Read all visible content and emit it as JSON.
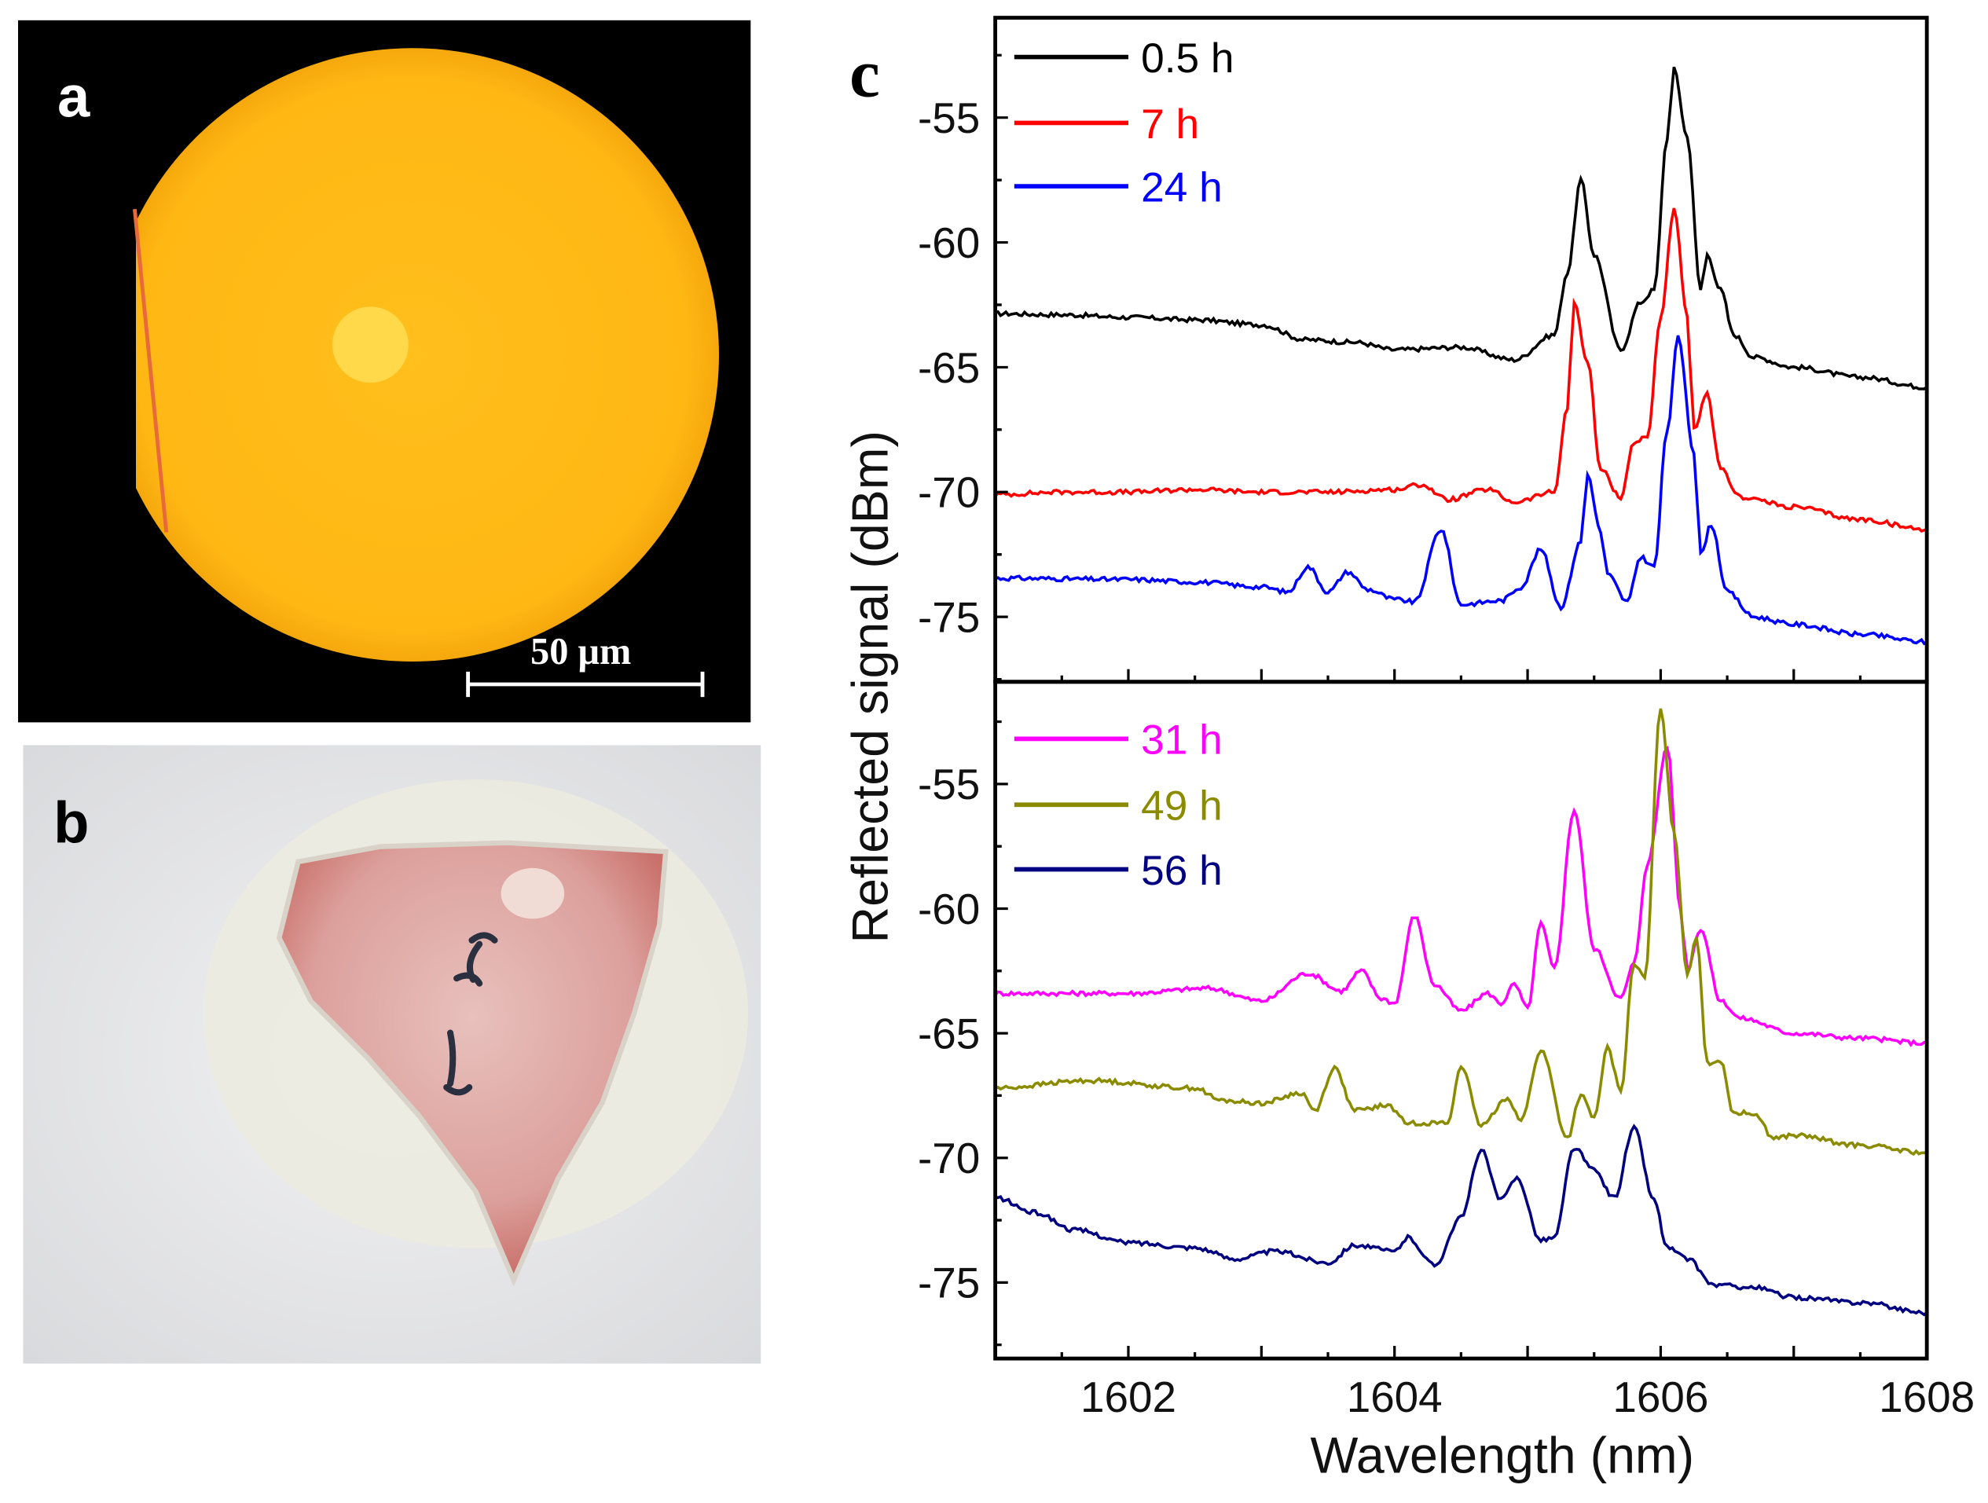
{
  "panels": {
    "a": {
      "label": "a",
      "scale_bar": "50 μm"
    },
    "b": {
      "label": "b"
    },
    "c": {
      "label": "c"
    }
  },
  "chart_data": {
    "type": "line",
    "title": "",
    "xlabel": "Wavelength (nm)",
    "ylabel": "Reflected signal (dBm)",
    "xlim": [
      1601,
      1608
    ],
    "xticks": [
      1602,
      1604,
      1606,
      1608
    ],
    "grid": false,
    "legend_placement": "top-left",
    "subplots": [
      {
        "ylim": [
          -77.6,
          -51
        ],
        "yticks": [
          -55,
          -60,
          -65,
          -70,
          -75
        ],
        "series": [
          {
            "name": "0.5 h",
            "color": "#000000",
            "points": [
              [
                1601,
                -62.85
              ],
              [
                1601.5,
                -62.9
              ],
              [
                1602,
                -63.0
              ],
              [
                1602.5,
                -63.1
              ],
              [
                1603,
                -63.3
              ],
              [
                1603.33,
                -63.9
              ],
              [
                1603.7,
                -64.0
              ],
              [
                1604,
                -64.3
              ],
              [
                1604.5,
                -64.2
              ],
              [
                1604.9,
                -64.7
              ],
              [
                1605.2,
                -63.7
              ],
              [
                1605.3,
                -61.2
              ],
              [
                1605.4,
                -57.5
              ],
              [
                1605.5,
                -60.5
              ],
              [
                1605.7,
                -64.3
              ],
              [
                1605.85,
                -62.4
              ],
              [
                1605.95,
                -61.9
              ],
              [
                1606.05,
                -55.8
              ],
              [
                1606.1,
                -53.05
              ],
              [
                1606.2,
                -55.8
              ],
              [
                1606.3,
                -61.9
              ],
              [
                1606.35,
                -60.5
              ],
              [
                1606.45,
                -61.9
              ],
              [
                1606.55,
                -63.7
              ],
              [
                1606.7,
                -64.6
              ],
              [
                1607,
                -65.0
              ],
              [
                1607.5,
                -65.4
              ],
              [
                1608,
                -65.8
              ]
            ]
          },
          {
            "name": "7 h",
            "color": "#ff0000",
            "points": [
              [
                1601,
                -70.1
              ],
              [
                1601.5,
                -70.0
              ],
              [
                1602,
                -70.0
              ],
              [
                1602.5,
                -69.9
              ],
              [
                1603,
                -70.0
              ],
              [
                1603.5,
                -70.0
              ],
              [
                1604,
                -69.9
              ],
              [
                1604.2,
                -69.7
              ],
              [
                1604.4,
                -70.3
              ],
              [
                1604.7,
                -69.9
              ],
              [
                1604.9,
                -70.4
              ],
              [
                1605.2,
                -70.0
              ],
              [
                1605.3,
                -66.6
              ],
              [
                1605.35,
                -62.4
              ],
              [
                1605.45,
                -64.8
              ],
              [
                1605.55,
                -69.1
              ],
              [
                1605.7,
                -70.2
              ],
              [
                1605.8,
                -68.0
              ],
              [
                1605.9,
                -67.8
              ],
              [
                1606.0,
                -63.0
              ],
              [
                1606.1,
                -58.7
              ],
              [
                1606.2,
                -63.0
              ],
              [
                1606.25,
                -67.5
              ],
              [
                1606.35,
                -66.1
              ],
              [
                1606.45,
                -69.1
              ],
              [
                1606.6,
                -70.2
              ],
              [
                1607,
                -70.6
              ],
              [
                1607.5,
                -71.1
              ],
              [
                1608,
                -71.5
              ]
            ]
          },
          {
            "name": "24 h",
            "color": "#0000ff",
            "points": [
              [
                1601,
                -73.45
              ],
              [
                1602,
                -73.5
              ],
              [
                1602.5,
                -73.6
              ],
              [
                1603,
                -73.8
              ],
              [
                1603.2,
                -74.0
              ],
              [
                1603.35,
                -73.0
              ],
              [
                1603.5,
                -74.0
              ],
              [
                1603.65,
                -73.2
              ],
              [
                1603.8,
                -73.9
              ],
              [
                1604,
                -74.3
              ],
              [
                1604.15,
                -74.4
              ],
              [
                1604.35,
                -71.5
              ],
              [
                1604.5,
                -74.5
              ],
              [
                1604.8,
                -74.35
              ],
              [
                1604.95,
                -73.8
              ],
              [
                1605.1,
                -72.3
              ],
              [
                1605.25,
                -74.6
              ],
              [
                1605.4,
                -72.0
              ],
              [
                1605.45,
                -69.3
              ],
              [
                1605.55,
                -71.6
              ],
              [
                1605.6,
                -73.3
              ],
              [
                1605.75,
                -74.4
              ],
              [
                1605.85,
                -72.6
              ],
              [
                1605.95,
                -73.0
              ],
              [
                1606.05,
                -67.5
              ],
              [
                1606.13,
                -63.8
              ],
              [
                1606.25,
                -68.4
              ],
              [
                1606.3,
                -72.5
              ],
              [
                1606.38,
                -71.3
              ],
              [
                1606.5,
                -74.0
              ],
              [
                1606.7,
                -75.0
              ],
              [
                1607,
                -75.3
              ],
              [
                1607.5,
                -75.7
              ],
              [
                1608,
                -76.0
              ]
            ]
          }
        ]
      },
      {
        "ylim": [
          -78.05,
          -50.9
        ],
        "yticks": [
          -55,
          -60,
          -65,
          -70,
          -75
        ],
        "series": [
          {
            "name": "31 h",
            "color": "#ff00ff",
            "points": [
              [
                1601,
                -63.4
              ],
              [
                1602,
                -63.4
              ],
              [
                1602.6,
                -63.2
              ],
              [
                1603,
                -63.7
              ],
              [
                1603.35,
                -62.6
              ],
              [
                1603.6,
                -63.3
              ],
              [
                1603.75,
                -62.5
              ],
              [
                1603.9,
                -63.6
              ],
              [
                1604,
                -63.8
              ],
              [
                1604.15,
                -60.3
              ],
              [
                1604.3,
                -63.05
              ],
              [
                1604.5,
                -64.1
              ],
              [
                1604.7,
                -63.4
              ],
              [
                1604.8,
                -63.8
              ],
              [
                1604.9,
                -63.05
              ],
              [
                1605,
                -64.0
              ],
              [
                1605.1,
                -60.6
              ],
              [
                1605.2,
                -62.4
              ],
              [
                1605.35,
                -56.05
              ],
              [
                1605.5,
                -61.6
              ],
              [
                1605.7,
                -63.6
              ],
              [
                1605.8,
                -62.2
              ],
              [
                1605.9,
                -58.2
              ],
              [
                1606.05,
                -53.5
              ],
              [
                1606.15,
                -60.1
              ],
              [
                1606.2,
                -62.4
              ],
              [
                1606.3,
                -60.8
              ],
              [
                1606.45,
                -63.7
              ],
              [
                1606.6,
                -64.4
              ],
              [
                1607,
                -65.0
              ],
              [
                1607.5,
                -65.2
              ],
              [
                1608,
                -65.4
              ]
            ]
          },
          {
            "name": "49 h",
            "color": "#8b8b00",
            "points": [
              [
                1601,
                -67.2
              ],
              [
                1601.7,
                -66.9
              ],
              [
                1602.5,
                -67.2
              ],
              [
                1602.7,
                -67.7
              ],
              [
                1603,
                -67.8
              ],
              [
                1603.3,
                -67.4
              ],
              [
                1603.4,
                -68.1
              ],
              [
                1603.55,
                -66.4
              ],
              [
                1603.7,
                -68.1
              ],
              [
                1603.95,
                -67.9
              ],
              [
                1604.1,
                -68.6
              ],
              [
                1604.4,
                -68.6
              ],
              [
                1604.5,
                -66.3
              ],
              [
                1604.65,
                -68.7
              ],
              [
                1604.85,
                -67.6
              ],
              [
                1604.95,
                -68.5
              ],
              [
                1605.1,
                -65.7
              ],
              [
                1605.3,
                -69.2
              ],
              [
                1605.4,
                -67.5
              ],
              [
                1605.5,
                -68.4
              ],
              [
                1605.6,
                -65.6
              ],
              [
                1605.7,
                -67.3
              ],
              [
                1605.8,
                -62.2
              ],
              [
                1605.88,
                -62.8
              ],
              [
                1606.0,
                -52.0
              ],
              [
                1606.1,
                -56.9
              ],
              [
                1606.2,
                -62.6
              ],
              [
                1606.27,
                -61.1
              ],
              [
                1606.35,
                -66.2
              ],
              [
                1606.45,
                -66.1
              ],
              [
                1606.55,
                -68.2
              ],
              [
                1606.7,
                -68.2
              ],
              [
                1606.85,
                -69.2
              ],
              [
                1607,
                -69.1
              ],
              [
                1607.5,
                -69.5
              ],
              [
                1608,
                -69.8
              ]
            ]
          },
          {
            "name": "56 h",
            "color": "#000080",
            "points": [
              [
                1601,
                -71.6
              ],
              [
                1601.3,
                -72.2
              ],
              [
                1601.6,
                -72.9
              ],
              [
                1602,
                -73.4
              ],
              [
                1602.5,
                -73.6
              ],
              [
                1602.8,
                -74.05
              ],
              [
                1603.1,
                -73.75
              ],
              [
                1603.5,
                -74.2
              ],
              [
                1603.7,
                -73.5
              ],
              [
                1604,
                -73.75
              ],
              [
                1604.1,
                -73.2
              ],
              [
                1604.3,
                -74.3
              ],
              [
                1604.5,
                -72.4
              ],
              [
                1604.65,
                -69.7
              ],
              [
                1604.8,
                -71.7
              ],
              [
                1604.92,
                -70.8
              ],
              [
                1605.1,
                -73.3
              ],
              [
                1605.2,
                -73.2
              ],
              [
                1605.35,
                -69.6
              ],
              [
                1605.5,
                -70.5
              ],
              [
                1605.65,
                -71.6
              ],
              [
                1605.8,
                -68.8
              ],
              [
                1605.95,
                -71.7
              ],
              [
                1606.05,
                -73.6
              ],
              [
                1606.2,
                -74.05
              ],
              [
                1606.4,
                -75.1
              ],
              [
                1606.7,
                -75.2
              ],
              [
                1607,
                -75.6
              ],
              [
                1607.5,
                -75.8
              ],
              [
                1608,
                -76.2
              ]
            ]
          }
        ]
      }
    ]
  }
}
